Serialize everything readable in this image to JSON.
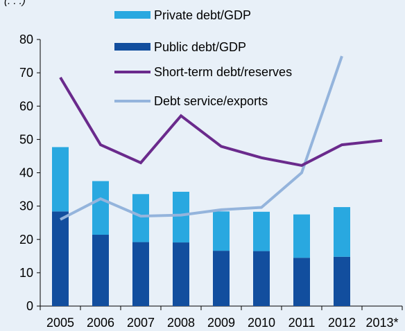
{
  "top_fragment": "(. . .)",
  "colors": {
    "background": "#e8f0f8",
    "private_debt": "#29a8e0",
    "public_debt": "#124e9e",
    "short_term": "#6a2a8c",
    "debt_service": "#94b4dc",
    "axis": "#000000"
  },
  "chart_data": {
    "type": "bar",
    "categories": [
      "2005",
      "2006",
      "2007",
      "2008",
      "2009",
      "2010",
      "2011",
      "2012",
      "2013*"
    ],
    "ylim": [
      0,
      80
    ],
    "yticks": [
      0,
      10,
      20,
      30,
      40,
      50,
      60,
      70,
      80
    ],
    "grid": false,
    "legend_position": "top",
    "title": "",
    "xlabel": "",
    "ylabel": "",
    "series": [
      {
        "name": "Private debt/GDP",
        "kind": "stacked-bar-top",
        "values": [
          19.3,
          16.1,
          14.4,
          15.2,
          11.8,
          11.8,
          13.0,
          14.9,
          null
        ]
      },
      {
        "name": "Public debt/GDP",
        "kind": "stacked-bar-base",
        "values": [
          28.4,
          21.4,
          19.2,
          19.1,
          16.6,
          16.5,
          14.5,
          14.8,
          null
        ]
      },
      {
        "name": "Short-term debt/reserves",
        "kind": "line",
        "values": [
          68.6,
          48.4,
          43.0,
          57.1,
          47.9,
          44.5,
          42.2,
          48.4,
          49.7
        ]
      },
      {
        "name": "Debt service/exports",
        "kind": "line",
        "values": [
          26.0,
          32.2,
          27.0,
          27.3,
          28.9,
          29.6,
          40.0,
          75.0,
          null
        ]
      }
    ]
  }
}
